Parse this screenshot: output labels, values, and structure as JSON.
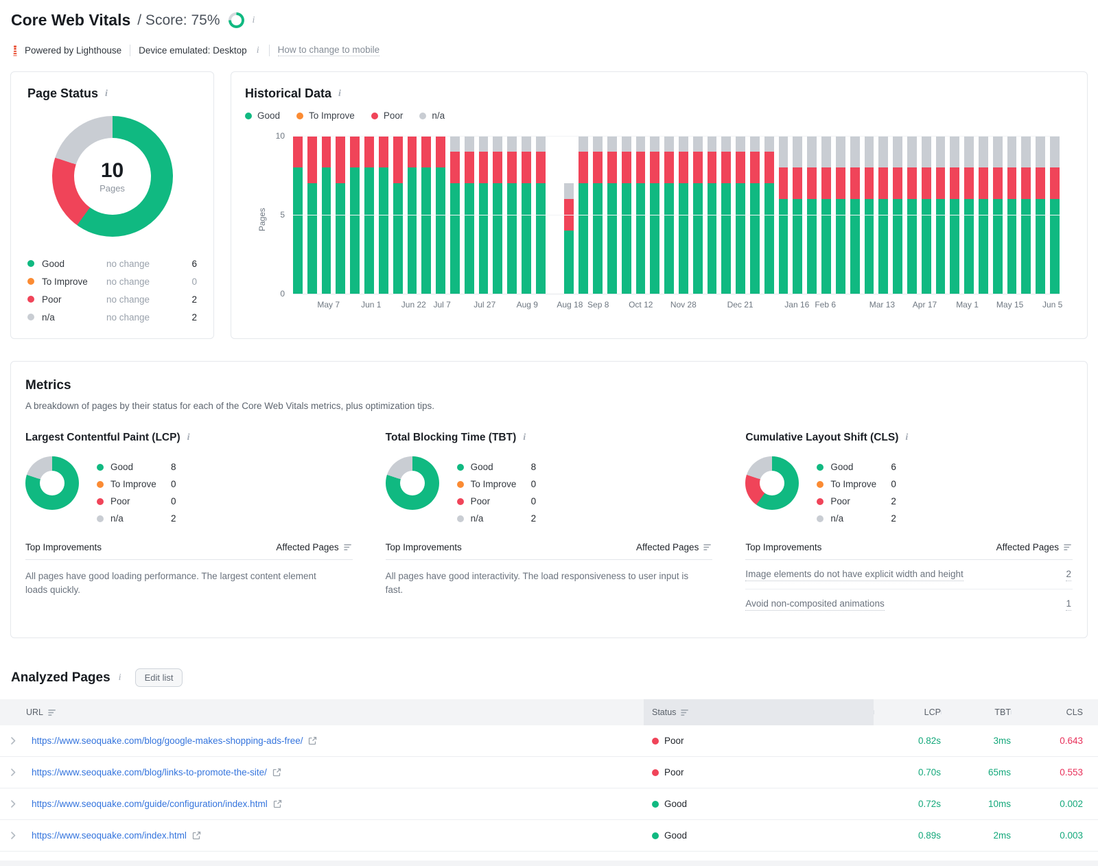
{
  "header": {
    "title": "Core Web Vitals",
    "score_text": "/ Score: 75%",
    "score_percent": 75,
    "powered_by": "Powered by Lighthouse",
    "device": "Device emulated: Desktop",
    "change_link": "How to change to mobile"
  },
  "colors": {
    "good": "#10b981",
    "to_improve": "#fb8b33",
    "poor": "#f04459",
    "na": "#c9cdd3",
    "ring_rest": "#d6dade",
    "link": "#3474dd",
    "value_good": "#14a87b",
    "value_poor": "#e8305a"
  },
  "page_status": {
    "title": "Page Status",
    "total": "10",
    "total_label": "Pages",
    "legend": [
      {
        "key": "good",
        "label": "Good",
        "change": "no change",
        "value": "6"
      },
      {
        "key": "to_improve",
        "label": "To Improve",
        "change": "no change",
        "value": "0"
      },
      {
        "key": "poor",
        "label": "Poor",
        "change": "no change",
        "value": "2"
      },
      {
        "key": "na",
        "label": "n/a",
        "change": "no change",
        "value": "2"
      }
    ]
  },
  "historical": {
    "title": "Historical Data",
    "legend": [
      {
        "key": "good",
        "label": "Good"
      },
      {
        "key": "to_improve",
        "label": "To Improve"
      },
      {
        "key": "poor",
        "label": "Poor"
      },
      {
        "key": "na",
        "label": "n/a"
      }
    ]
  },
  "metrics": {
    "title": "Metrics",
    "subtitle": "A breakdown of pages by their status for each of the Core Web Vitals metrics, plus optimization tips.",
    "improvements_header": "Top Improvements",
    "affected_header": "Affected Pages",
    "items": [
      {
        "title": "Largest Contentful Paint (LCP)",
        "chart_id": "lcp-donut",
        "legend": [
          {
            "key": "good",
            "label": "Good",
            "value": "8"
          },
          {
            "key": "to_improve",
            "label": "To Improve",
            "value": "0"
          },
          {
            "key": "poor",
            "label": "Poor",
            "value": "0"
          },
          {
            "key": "na",
            "label": "n/a",
            "value": "2"
          }
        ],
        "note": "All pages have good loading performance. The largest content element loads quickly."
      },
      {
        "title": "Total Blocking Time (TBT)",
        "chart_id": "tbt-donut",
        "legend": [
          {
            "key": "good",
            "label": "Good",
            "value": "8"
          },
          {
            "key": "to_improve",
            "label": "To Improve",
            "value": "0"
          },
          {
            "key": "poor",
            "label": "Poor",
            "value": "0"
          },
          {
            "key": "na",
            "label": "n/a",
            "value": "2"
          }
        ],
        "note": "All pages have good interactivity. The load responsiveness to user input is fast."
      },
      {
        "title": "Cumulative Layout Shift (CLS)",
        "chart_id": "cls-donut",
        "legend": [
          {
            "key": "good",
            "label": "Good",
            "value": "6"
          },
          {
            "key": "to_improve",
            "label": "To Improve",
            "value": "0"
          },
          {
            "key": "poor",
            "label": "Poor",
            "value": "2"
          },
          {
            "key": "na",
            "label": "n/a",
            "value": "2"
          }
        ],
        "rows": [
          {
            "text": "Image elements do not have explicit width and height",
            "pages": "2"
          },
          {
            "text": "Avoid non-composited animations",
            "pages": "1"
          }
        ]
      }
    ]
  },
  "analyzed": {
    "title": "Analyzed Pages",
    "edit_button": "Edit list",
    "columns": [
      "URL",
      "Status",
      "LCP",
      "TBT",
      "CLS"
    ],
    "rows": [
      {
        "url": "https://www.seoquake.com/blog/google-makes-shopping-ads-free/",
        "status": "Poor",
        "status_key": "poor",
        "lcp": "0.82s",
        "tbt": "3ms",
        "cls": "0.643",
        "cls_status": "poor"
      },
      {
        "url": "https://www.seoquake.com/blog/links-to-promote-the-site/",
        "status": "Poor",
        "status_key": "poor",
        "lcp": "0.70s",
        "tbt": "65ms",
        "cls": "0.553",
        "cls_status": "poor"
      },
      {
        "url": "https://www.seoquake.com/guide/configuration/index.html",
        "status": "Good",
        "status_key": "good",
        "lcp": "0.72s",
        "tbt": "10ms",
        "cls": "0.002",
        "cls_status": "good"
      },
      {
        "url": "https://www.seoquake.com/index.html",
        "status": "Good",
        "status_key": "good",
        "lcp": "0.89s",
        "tbt": "2ms",
        "cls": "0.003",
        "cls_status": "good"
      }
    ]
  },
  "chart_data": [
    {
      "id": "page-status-donut",
      "type": "pie",
      "title": "Page Status",
      "labels": [
        "Good",
        "To Improve",
        "Poor",
        "n/a"
      ],
      "values": [
        6,
        0,
        2,
        2
      ],
      "center_value": "10",
      "center_label": "Pages"
    },
    {
      "id": "historical-stacked-bar",
      "type": "bar",
      "stacked": true,
      "title": "Historical Data",
      "ylabel": "Pages",
      "ylim": [
        0,
        10
      ],
      "y_ticks": [
        0,
        5,
        10
      ],
      "legend_position": "top",
      "grid": true,
      "series": [
        {
          "name": "Good",
          "key": "good",
          "values": [
            8,
            7,
            8,
            7,
            8,
            8,
            8,
            7,
            8,
            8,
            8,
            7,
            7,
            7,
            7,
            7,
            7,
            7,
            0,
            4,
            7,
            7,
            7,
            7,
            7,
            7,
            7,
            7,
            7,
            7,
            7,
            7,
            7,
            7,
            6,
            6,
            6,
            6,
            6,
            6,
            6,
            6,
            6,
            6,
            6,
            6,
            6,
            6,
            6,
            6,
            6,
            6,
            6,
            6
          ]
        },
        {
          "name": "To Improve",
          "key": "to_improve",
          "values": [
            0,
            0,
            0,
            0,
            0,
            0,
            0,
            0,
            0,
            0,
            0,
            0,
            0,
            0,
            0,
            0,
            0,
            0,
            0,
            0,
            0,
            0,
            0,
            0,
            0,
            0,
            0,
            0,
            0,
            0,
            0,
            0,
            0,
            0,
            0,
            0,
            0,
            0,
            0,
            0,
            0,
            0,
            0,
            0,
            0,
            0,
            0,
            0,
            0,
            0,
            0,
            0,
            0,
            0
          ]
        },
        {
          "name": "Poor",
          "key": "poor",
          "values": [
            2,
            3,
            2,
            3,
            2,
            2,
            2,
            3,
            2,
            2,
            2,
            2,
            2,
            2,
            2,
            2,
            2,
            2,
            0,
            2,
            2,
            2,
            2,
            2,
            2,
            2,
            2,
            2,
            2,
            2,
            2,
            2,
            2,
            2,
            2,
            2,
            2,
            2,
            2,
            2,
            2,
            2,
            2,
            2,
            2,
            2,
            2,
            2,
            2,
            2,
            2,
            2,
            2,
            2
          ]
        },
        {
          "name": "n/a",
          "key": "na",
          "values": [
            0,
            0,
            0,
            0,
            0,
            0,
            0,
            0,
            0,
            0,
            0,
            1,
            1,
            1,
            1,
            1,
            1,
            1,
            0,
            1,
            1,
            1,
            1,
            1,
            1,
            1,
            1,
            1,
            1,
            1,
            1,
            1,
            1,
            1,
            2,
            2,
            2,
            2,
            2,
            2,
            2,
            2,
            2,
            2,
            2,
            2,
            2,
            2,
            2,
            2,
            2,
            2,
            2,
            2
          ]
        }
      ],
      "x_ticks": [
        {
          "label": "May 7",
          "bar": 3
        },
        {
          "label": "Jun 1",
          "bar": 6
        },
        {
          "label": "Jun 22",
          "bar": 9
        },
        {
          "label": "Jul 7",
          "bar": 11
        },
        {
          "label": "Jul 27",
          "bar": 14
        },
        {
          "label": "Aug 9",
          "bar": 17
        },
        {
          "label": "Aug 18",
          "bar": 20
        },
        {
          "label": "Sep 8",
          "bar": 22
        },
        {
          "label": "Oct 12",
          "bar": 25
        },
        {
          "label": "Nov 28",
          "bar": 28
        },
        {
          "label": "Dec 21",
          "bar": 32
        },
        {
          "label": "Jan 16",
          "bar": 36
        },
        {
          "label": "Feb 6",
          "bar": 38
        },
        {
          "label": "Mar 13",
          "bar": 42
        },
        {
          "label": "Apr 17",
          "bar": 45
        },
        {
          "label": "May 1",
          "bar": 48
        },
        {
          "label": "May 15",
          "bar": 51
        },
        {
          "label": "Jun 5",
          "bar": 54
        }
      ]
    },
    {
      "id": "lcp-donut",
      "type": "pie",
      "title": "Largest Contentful Paint (LCP)",
      "labels": [
        "Good",
        "To Improve",
        "Poor",
        "n/a"
      ],
      "values": [
        8,
        0,
        0,
        2
      ]
    },
    {
      "id": "tbt-donut",
      "type": "pie",
      "title": "Total Blocking Time (TBT)",
      "labels": [
        "Good",
        "To Improve",
        "Poor",
        "n/a"
      ],
      "values": [
        8,
        0,
        0,
        2
      ]
    },
    {
      "id": "cls-donut",
      "type": "pie",
      "title": "Cumulative Layout Shift (CLS)",
      "labels": [
        "Good",
        "To Improve",
        "Poor",
        "n/a"
      ],
      "values": [
        6,
        0,
        2,
        2
      ]
    }
  ]
}
